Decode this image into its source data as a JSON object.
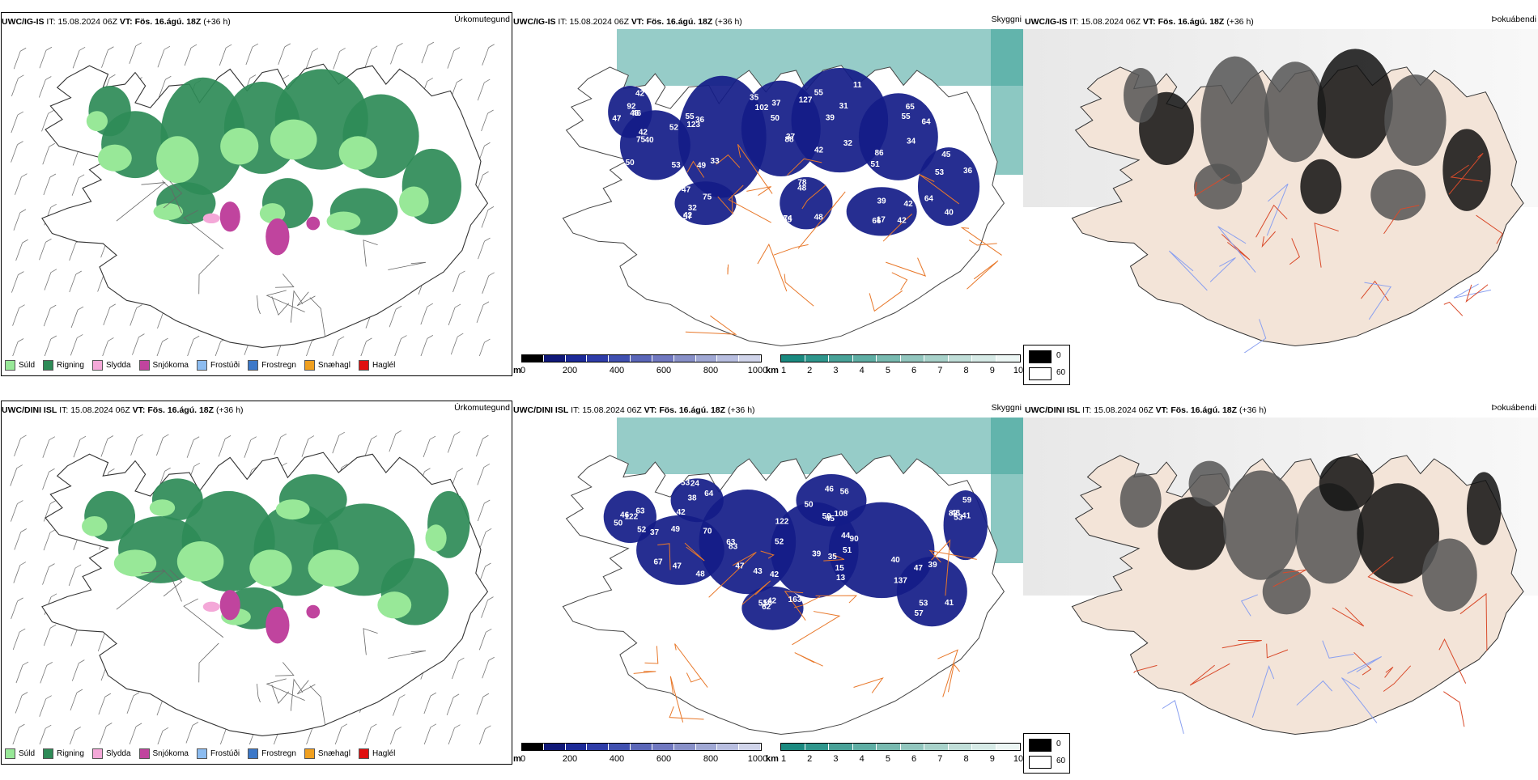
{
  "rows": [
    {
      "model": "UWC/IG-IS",
      "it_label": "IT:",
      "it_value": "15.08.2024 06Z",
      "vt_label": "VT:",
      "vt_value": "Fös. 16.ágú. 18Z",
      "lead": "(+36 h)",
      "panel_titles": [
        "Úrkomutegund",
        "Skyggni",
        "Þokuábendi"
      ],
      "visibility_labels": [
        "53",
        "123",
        "127",
        "39",
        "55",
        "42",
        "48",
        "39",
        "47",
        "53",
        "50",
        "49",
        "37",
        "31",
        "34",
        "47",
        "78",
        "42",
        "46",
        "36",
        "40",
        "33",
        "50",
        "55",
        "65",
        "32",
        "48",
        "42",
        "46",
        "40",
        "42",
        "36",
        "88",
        "42",
        "64",
        "75",
        "74",
        "66",
        "92",
        "64",
        "52",
        "35",
        "37",
        "32",
        "86",
        "57",
        "55",
        "17",
        "42",
        "45",
        "75",
        "55",
        "102",
        "11",
        "51"
      ]
    },
    {
      "model": "UWC/DINI ISL",
      "it_label": "IT:",
      "it_value": "15.08.2024 06Z",
      "vt_label": "VT:",
      "vt_value": "Fös. 16.ágú. 18Z",
      "lead": "(+36 h)",
      "panel_titles": [
        "Úrkomutegund",
        "Skyggni",
        "Þokuábendi"
      ],
      "visibility_labels": [
        "67",
        "43",
        "39",
        "51",
        "47",
        "53",
        "50",
        "56",
        "50",
        "41",
        "49",
        "42",
        "45",
        "40",
        "39",
        "38",
        "46",
        "42",
        "52",
        "82",
        "37",
        "83",
        "122",
        "137",
        "57",
        "24",
        "108",
        "163",
        "63",
        "53",
        "48",
        "63",
        "15",
        "44",
        "53",
        "64",
        "50",
        "51",
        "46",
        "48",
        "47",
        "52",
        "35",
        "90",
        "41",
        "42",
        "56",
        "62",
        "122",
        "59",
        "70",
        "47",
        "13"
      ]
    }
  ],
  "precip_legend": [
    {
      "label": "Súld",
      "color": "#98e898"
    },
    {
      "label": "Rigning",
      "color": "#2e8b57"
    },
    {
      "label": "Slydda",
      "color": "#f4a8d8"
    },
    {
      "label": "Snjókoma",
      "color": "#c0449e"
    },
    {
      "label": "Frostúði",
      "color": "#8cbcf0"
    },
    {
      "label": "Frostregn",
      "color": "#3c78c8"
    },
    {
      "label": "Snæhagl",
      "color": "#f0a020"
    },
    {
      "label": "Haglél",
      "color": "#e01010"
    }
  ],
  "ceiling_scale": {
    "unit": "m",
    "ticks": [
      "0",
      "200",
      "400",
      "600",
      "800",
      "1000"
    ],
    "colors": [
      "#000000",
      "#101878",
      "#1c2a98",
      "#2e3ca8",
      "#4050b0",
      "#5a66b8",
      "#7078c0",
      "#8890c8",
      "#a0a8d4",
      "#b8bee0",
      "#d0d4ea"
    ]
  },
  "visibility_scale": {
    "unit": "km",
    "ticks": [
      "1",
      "2",
      "3",
      "4",
      "5",
      "6",
      "7",
      "8",
      "9",
      "10"
    ],
    "colors": [
      "#1a8a80",
      "#2e968c",
      "#48a298",
      "#5eaea4",
      "#78bab0",
      "#92c6be",
      "#a8d2ca",
      "#c0ded8",
      "#d6eae6",
      "#ecf6f4"
    ]
  },
  "fog_legend": {
    "high": "0",
    "low": "60",
    "high_color": "#000000",
    "low_color": "#ffffff"
  },
  "colors": {
    "land": "#f3e4d8",
    "road": "#e8782a",
    "river": "#8aa0f0",
    "cloud_deep": "#141c88",
    "sea_vis": "#3fa39a"
  }
}
